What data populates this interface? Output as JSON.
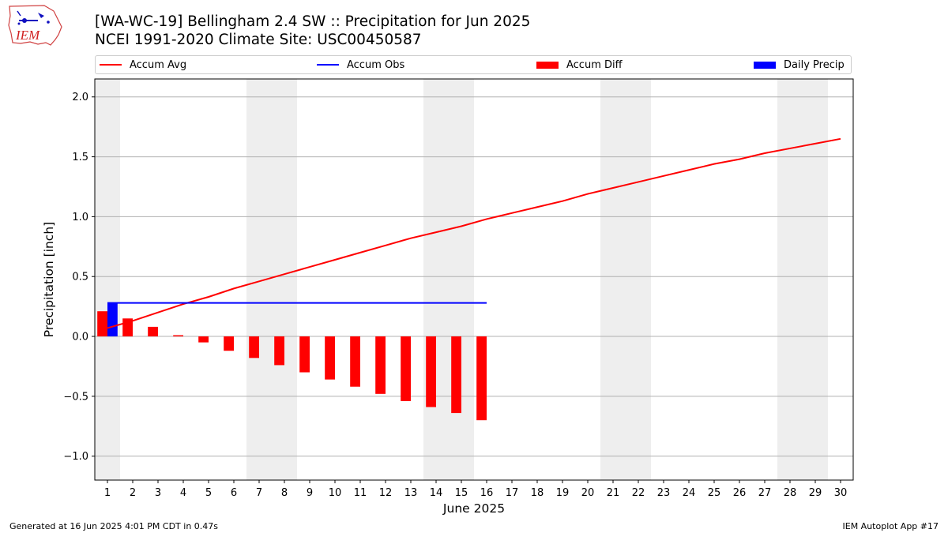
{
  "header": {
    "title_line1": "[WA-WC-19] Bellingham 2.4 SW :: Precipitation for Jun 2025",
    "title_line2": "NCEI 1991-2020 Climate Site: USC00450587",
    "logo_text": "IEM"
  },
  "footer": {
    "left": "Generated at 16 Jun 2025 4:01 PM CDT in 0.47s",
    "right": "IEM Autoplot App #17"
  },
  "colors": {
    "avg_line": "#ff0000",
    "obs_line": "#0000ff",
    "diff_bar": "#ff0000",
    "daily_bar": "#0000ff",
    "weekend_shade": "#eeeeee",
    "grid": "#b0b0b0"
  },
  "chart_data": {
    "type": "bar",
    "xlabel": "June 2025",
    "ylabel": "Precipitation [inch]",
    "xlim": [
      0.5,
      30.5
    ],
    "ylim": [
      -1.2,
      2.15
    ],
    "xticks": [
      1,
      2,
      3,
      4,
      5,
      6,
      7,
      8,
      9,
      10,
      11,
      12,
      13,
      14,
      15,
      16,
      17,
      18,
      19,
      20,
      21,
      22,
      23,
      24,
      25,
      26,
      27,
      28,
      29,
      30
    ],
    "yticks": [
      -1.0,
      -0.5,
      0.0,
      0.5,
      1.0,
      1.5,
      2.0
    ],
    "ytick_labels": [
      "−1.0",
      "−0.5",
      "0.0",
      "0.5",
      "1.0",
      "1.5",
      "2.0"
    ],
    "grid": "horizontal",
    "legend_position": "top",
    "weekend_days": [
      1,
      7,
      8,
      14,
      15,
      21,
      22,
      28,
      29
    ],
    "series": [
      {
        "name": "Accum Avg",
        "kind": "line",
        "x": [
          1,
          2,
          3,
          4,
          5,
          6,
          7,
          8,
          9,
          10,
          11,
          12,
          13,
          14,
          15,
          16,
          17,
          18,
          19,
          20,
          21,
          22,
          23,
          24,
          25,
          26,
          27,
          28,
          29,
          30
        ],
        "values": [
          0.07,
          0.13,
          0.2,
          0.27,
          0.33,
          0.4,
          0.46,
          0.52,
          0.58,
          0.64,
          0.7,
          0.76,
          0.82,
          0.87,
          0.92,
          0.98,
          1.03,
          1.08,
          1.13,
          1.19,
          1.24,
          1.29,
          1.34,
          1.39,
          1.44,
          1.48,
          1.53,
          1.57,
          1.61,
          1.65
        ]
      },
      {
        "name": "Accum Obs",
        "kind": "line",
        "x": [
          1,
          2,
          3,
          4,
          5,
          6,
          7,
          8,
          9,
          10,
          11,
          12,
          13,
          14,
          15,
          16
        ],
        "values": [
          0.28,
          0.28,
          0.28,
          0.28,
          0.28,
          0.28,
          0.28,
          0.28,
          0.28,
          0.28,
          0.28,
          0.28,
          0.28,
          0.28,
          0.28,
          0.28
        ]
      },
      {
        "name": "Accum Diff",
        "kind": "bar",
        "x": [
          1,
          2,
          3,
          4,
          5,
          6,
          7,
          8,
          9,
          10,
          11,
          12,
          13,
          14,
          15,
          16
        ],
        "values": [
          0.21,
          0.15,
          0.08,
          0.01,
          -0.05,
          -0.12,
          -0.18,
          -0.24,
          -0.3,
          -0.36,
          -0.42,
          -0.48,
          -0.54,
          -0.59,
          -0.64,
          -0.7
        ]
      },
      {
        "name": "Daily Precip",
        "kind": "bar",
        "x": [
          1
        ],
        "values": [
          0.28
        ]
      }
    ]
  }
}
